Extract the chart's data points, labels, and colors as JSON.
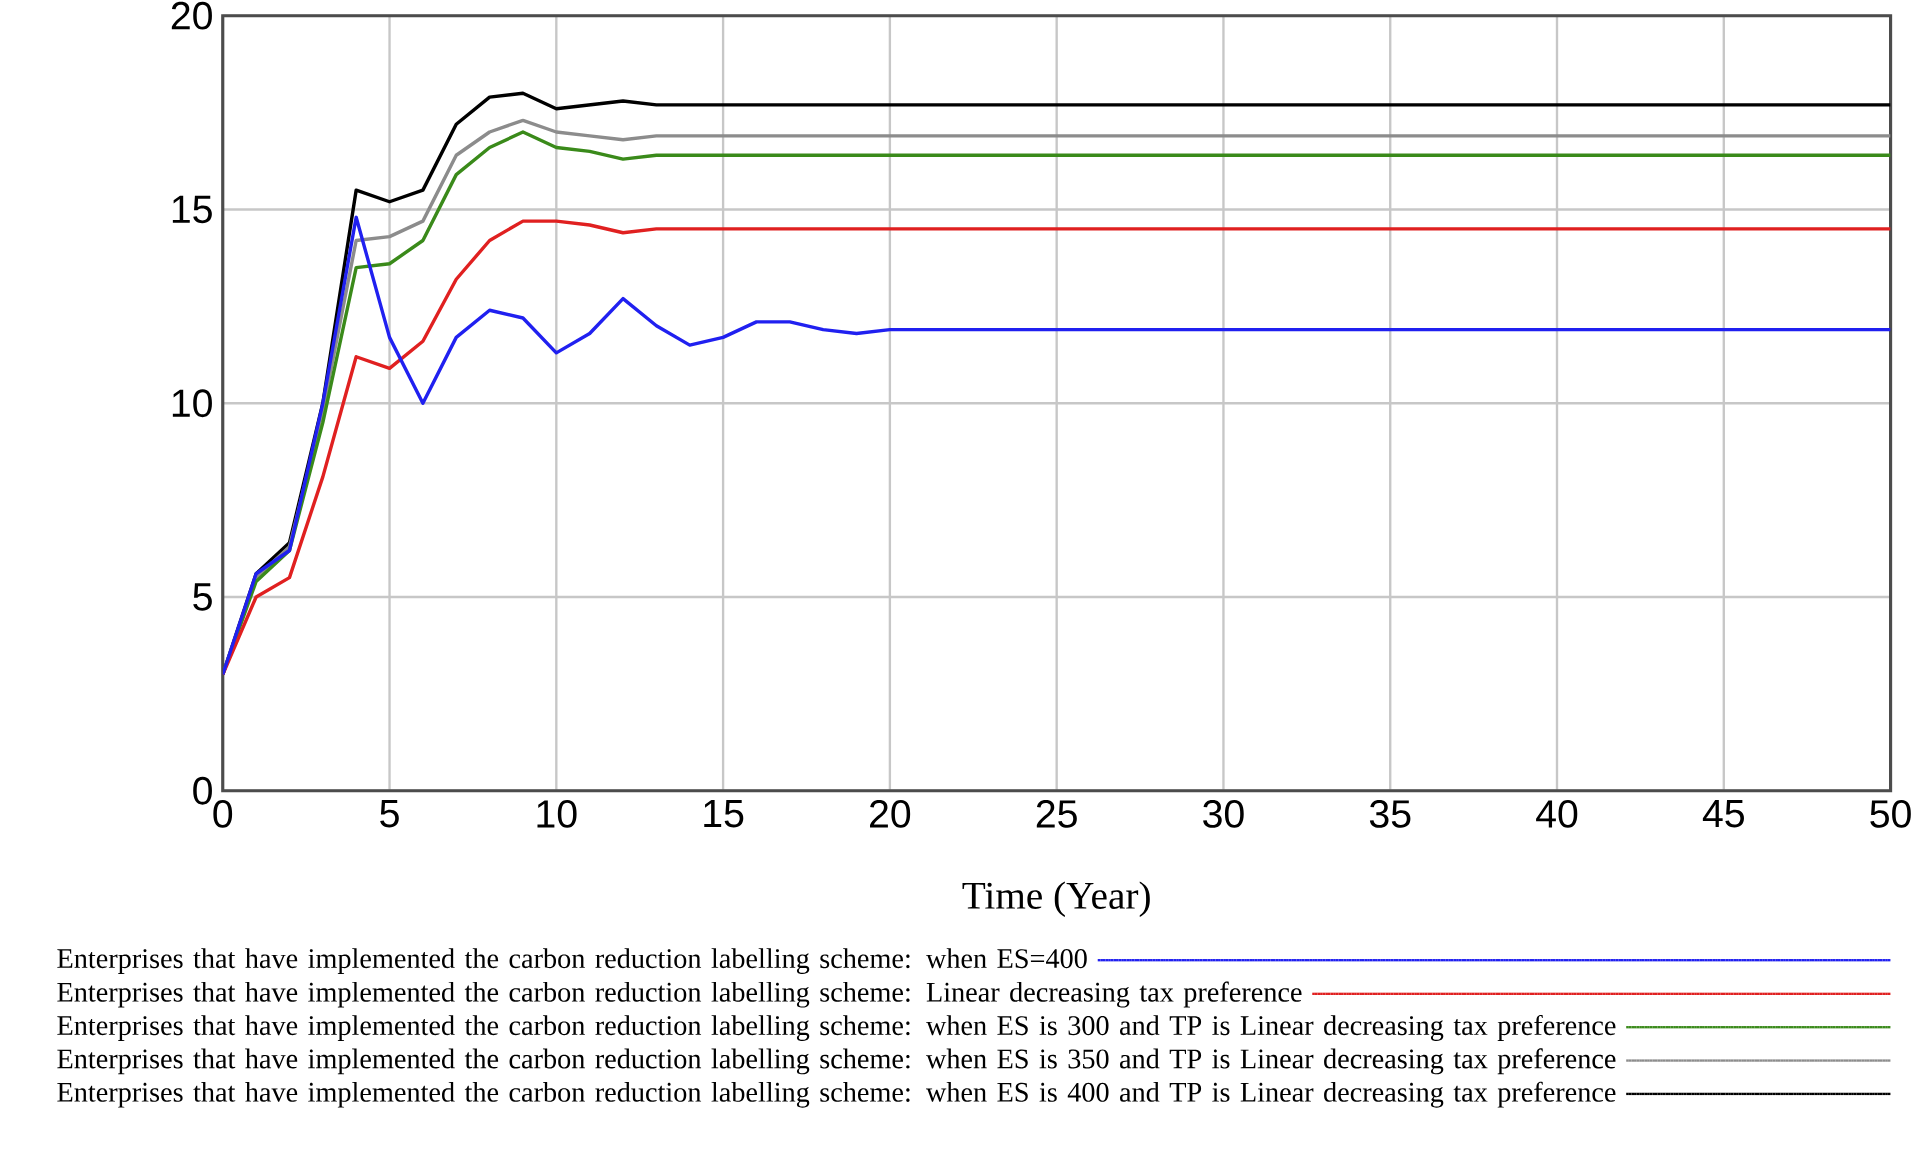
{
  "chart_data": {
    "type": "line",
    "xlabel": "Time (Year)",
    "x": [
      0,
      1,
      2,
      3,
      4,
      5,
      6,
      7,
      8,
      9,
      10,
      11,
      12,
      13,
      14,
      15,
      16,
      17,
      18,
      19,
      20,
      21,
      22,
      23,
      24,
      25,
      26,
      27,
      28,
      29,
      30,
      31,
      32,
      33,
      34,
      35,
      36,
      37,
      38,
      39,
      40,
      41,
      42,
      43,
      44,
      45,
      46,
      47,
      48,
      49,
      50
    ],
    "xlim": [
      0,
      50
    ],
    "xticks": [
      0,
      5,
      10,
      15,
      20,
      25,
      30,
      35,
      40,
      45,
      50
    ],
    "ylim": [
      0,
      20
    ],
    "yticks": [
      0,
      5,
      10,
      15,
      20
    ],
    "grid": true,
    "legend": "bottom",
    "series": [
      {
        "name": "Enterprises that have implemented the carbon reduction labelling scheme: when ES=400",
        "color": "#2020f0",
        "values": [
          3,
          5.6,
          6.2,
          10.0,
          14.8,
          11.7,
          10.0,
          11.7,
          12.4,
          12.2,
          11.3,
          11.8,
          12.7,
          12.0,
          11.5,
          11.7,
          12.1,
          12.1,
          11.9,
          11.8,
          11.9,
          11.9,
          11.9,
          11.9,
          11.9,
          11.9,
          11.9,
          11.9,
          11.9,
          11.9,
          11.9,
          11.9,
          11.9,
          11.9,
          11.9,
          11.9,
          11.9,
          11.9,
          11.9,
          11.9,
          11.9,
          11.9,
          11.9,
          11.9,
          11.9,
          11.9,
          11.9,
          11.9,
          11.9,
          11.9,
          11.9
        ]
      },
      {
        "name": "Enterprises that have implemented the carbon reduction labelling scheme: Linear decreasing tax preference",
        "color": "#e02020",
        "values": [
          3,
          5.0,
          5.5,
          8.1,
          11.2,
          10.9,
          11.6,
          13.2,
          14.2,
          14.7,
          14.7,
          14.6,
          14.4,
          14.5,
          14.5,
          14.5,
          14.5,
          14.5,
          14.5,
          14.5,
          14.5,
          14.5,
          14.5,
          14.5,
          14.5,
          14.5,
          14.5,
          14.5,
          14.5,
          14.5,
          14.5,
          14.5,
          14.5,
          14.5,
          14.5,
          14.5,
          14.5,
          14.5,
          14.5,
          14.5,
          14.5,
          14.5,
          14.5,
          14.5,
          14.5,
          14.5,
          14.5,
          14.5,
          14.5,
          14.5,
          14.5
        ]
      },
      {
        "name": "Enterprises that have implemented the carbon reduction labelling scheme: when ES is 300 and TP is Linear decreasing tax preference",
        "color": "#3a8a1a",
        "values": [
          3,
          5.4,
          6.2,
          9.5,
          13.5,
          13.6,
          14.2,
          15.9,
          16.6,
          17.0,
          16.6,
          16.5,
          16.3,
          16.4,
          16.4,
          16.4,
          16.4,
          16.4,
          16.4,
          16.4,
          16.4,
          16.4,
          16.4,
          16.4,
          16.4,
          16.4,
          16.4,
          16.4,
          16.4,
          16.4,
          16.4,
          16.4,
          16.4,
          16.4,
          16.4,
          16.4,
          16.4,
          16.4,
          16.4,
          16.4,
          16.4,
          16.4,
          16.4,
          16.4,
          16.4,
          16.4,
          16.4,
          16.4,
          16.4,
          16.4,
          16.4
        ]
      },
      {
        "name": "Enterprises that have implemented the carbon reduction labelling scheme: when ES is 350 and TP is Linear decreasing tax preference",
        "color": "#8c8c8c",
        "values": [
          3,
          5.5,
          6.3,
          9.8,
          14.2,
          14.3,
          14.7,
          16.4,
          17.0,
          17.3,
          17.0,
          16.9,
          16.8,
          16.9,
          16.9,
          16.9,
          16.9,
          16.9,
          16.9,
          16.9,
          16.9,
          16.9,
          16.9,
          16.9,
          16.9,
          16.9,
          16.9,
          16.9,
          16.9,
          16.9,
          16.9,
          16.9,
          16.9,
          16.9,
          16.9,
          16.9,
          16.9,
          16.9,
          16.9,
          16.9,
          16.9,
          16.9,
          16.9,
          16.9,
          16.9,
          16.9,
          16.9,
          16.9,
          16.9,
          16.9,
          16.9
        ]
      },
      {
        "name": "Enterprises that have implemented the carbon reduction labelling scheme: when ES is 400 and TP is Linear decreasing tax preference",
        "color": "#000000",
        "values": [
          3,
          5.6,
          6.4,
          10.0,
          15.5,
          15.2,
          15.5,
          17.2,
          17.9,
          18.0,
          17.6,
          17.7,
          17.8,
          17.7,
          17.7,
          17.7,
          17.7,
          17.7,
          17.7,
          17.7,
          17.7,
          17.7,
          17.7,
          17.7,
          17.7,
          17.7,
          17.7,
          17.7,
          17.7,
          17.7,
          17.7,
          17.7,
          17.7,
          17.7,
          17.7,
          17.7,
          17.7,
          17.7,
          17.7,
          17.7,
          17.7,
          17.7,
          17.7,
          17.7,
          17.7,
          17.7,
          17.7,
          17.7,
          17.7,
          17.7,
          17.7
        ]
      }
    ]
  }
}
